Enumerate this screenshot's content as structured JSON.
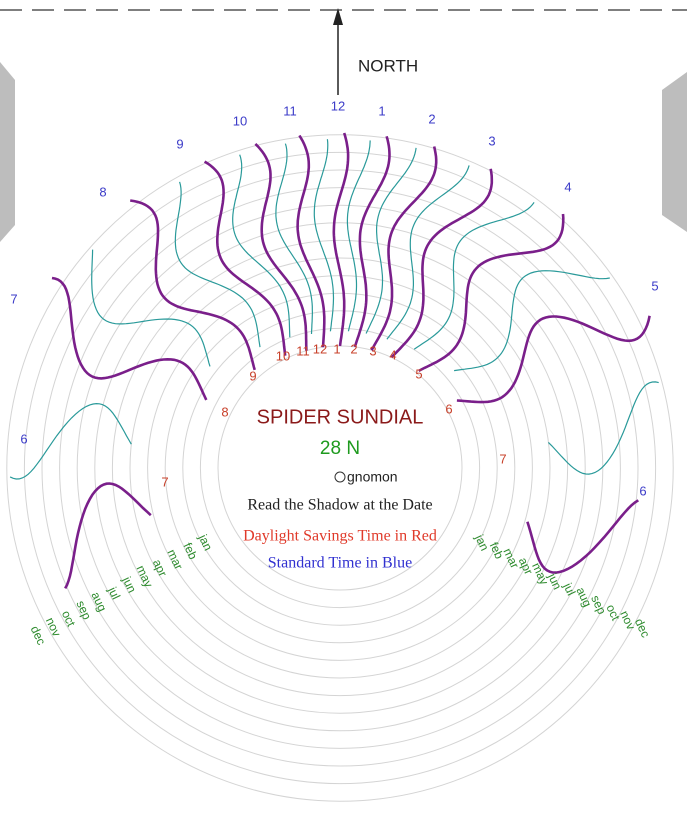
{
  "north_label": "NORTH",
  "title": "SPIDER SUNDIAL",
  "latitude": "28 N",
  "gnomon": "gnomon",
  "instructions": "Read the Shadow at the Date",
  "dst_note": "Daylight Savings Time in Red",
  "standard_note": "Standard Time in Blue",
  "standard_hours": [
    "6",
    "7",
    "8",
    "9",
    "10",
    "11",
    "12",
    "1",
    "2",
    "3",
    "4",
    "5",
    "6"
  ],
  "dst_hours": [
    "7",
    "8",
    "9",
    "10",
    "11",
    "12",
    "1",
    "2",
    "3",
    "4",
    "5",
    "6",
    "7"
  ],
  "months_left": [
    "dec",
    "nov",
    "oct",
    "sep",
    "aug",
    "jul",
    "jun",
    "may",
    "apr",
    "mar",
    "feb",
    "jan"
  ],
  "months_right": [
    "jan",
    "feb",
    "mar",
    "apr",
    "may",
    "jun",
    "jul",
    "aug",
    "sep",
    "oct",
    "nov",
    "dec"
  ]
}
